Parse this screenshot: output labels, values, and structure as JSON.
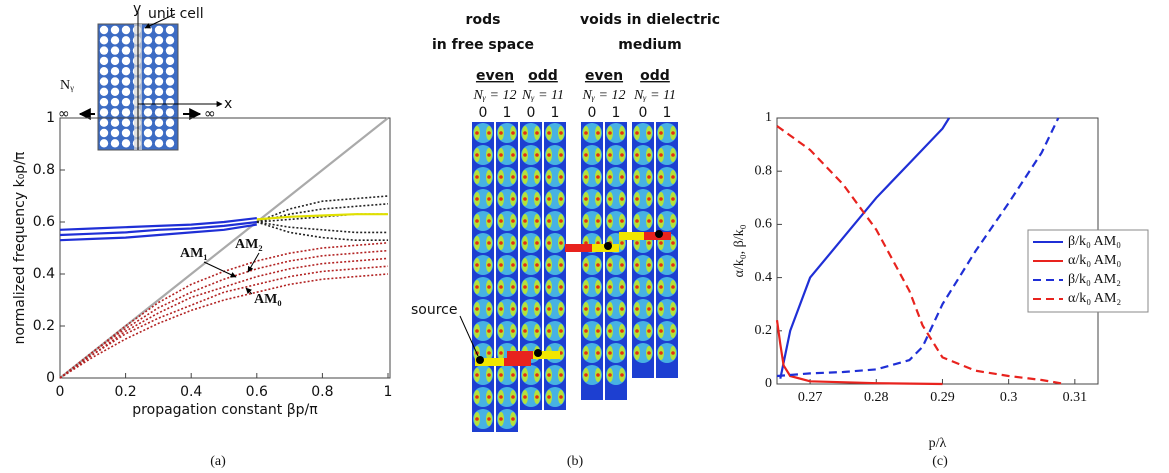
{
  "chart_data": [
    {
      "type": "line",
      "xlabel": "propagation constant βp/π",
      "ylabel": "normalized frequency k₀p/π",
      "xlim": [
        0,
        1
      ],
      "ylim": [
        0,
        1
      ],
      "xticks": [
        0,
        0.2,
        0.4,
        0.6,
        0.8,
        1
      ],
      "yticks": [
        0,
        0.2,
        0.4,
        0.6,
        0.8,
        1
      ],
      "x": [
        0,
        0.1,
        0.2,
        0.3,
        0.4,
        0.5,
        0.6,
        0.7,
        0.8,
        0.9,
        1
      ],
      "series": [
        {
          "color": "#aaaaaa",
          "style": "solid",
          "values": [
            0,
            0.1,
            0.2,
            0.3,
            0.4,
            0.5,
            0.6,
            0.7,
            0.8,
            0.9,
            1
          ]
        },
        {
          "color": "#b22222",
          "style": "dotted",
          "values": [
            0,
            0.1,
            0.2,
            0.29,
            0.36,
            0.41,
            0.45,
            0.48,
            0.5,
            0.51,
            0.52
          ]
        },
        {
          "color": "#b22222",
          "style": "dotted",
          "values": [
            0,
            0.1,
            0.19,
            0.27,
            0.33,
            0.38,
            0.42,
            0.45,
            0.47,
            0.48,
            0.49
          ]
        },
        {
          "color": "#b22222",
          "style": "dotted",
          "values": [
            0,
            0.09,
            0.18,
            0.25,
            0.31,
            0.35,
            0.39,
            0.42,
            0.44,
            0.45,
            0.46
          ]
        },
        {
          "color": "#b22222",
          "style": "dotted",
          "values": [
            0,
            0.09,
            0.17,
            0.23,
            0.28,
            0.33,
            0.36,
            0.39,
            0.41,
            0.42,
            0.43
          ]
        },
        {
          "color": "#b22222",
          "style": "dotted",
          "values": [
            0,
            0.08,
            0.15,
            0.21,
            0.26,
            0.3,
            0.33,
            0.36,
            0.38,
            0.39,
            0.4
          ]
        },
        {
          "color": "#222222",
          "style": "dotted",
          "values": [
            null,
            null,
            null,
            null,
            null,
            null,
            0.6,
            0.65,
            0.68,
            0.69,
            0.7
          ]
        },
        {
          "color": "#222222",
          "style": "dotted",
          "values": [
            null,
            null,
            null,
            null,
            null,
            null,
            0.6,
            0.63,
            0.65,
            0.66,
            0.67
          ]
        },
        {
          "color": "#222222",
          "style": "dotted",
          "values": [
            null,
            null,
            null,
            null,
            null,
            null,
            0.6,
            0.61,
            0.62,
            0.63,
            0.63
          ]
        },
        {
          "color": "#222222",
          "style": "dotted",
          "values": [
            null,
            null,
            null,
            null,
            null,
            null,
            0.6,
            0.58,
            0.57,
            0.56,
            0.56
          ]
        },
        {
          "color": "#222222",
          "style": "dotted",
          "values": [
            null,
            null,
            null,
            null,
            null,
            null,
            0.6,
            0.56,
            0.54,
            0.53,
            0.53
          ]
        },
        {
          "color": "#e0e000",
          "style": "solid",
          "values": [
            null,
            null,
            null,
            null,
            null,
            null,
            0.61,
            0.62,
            0.625,
            0.63,
            0.63
          ]
        },
        {
          "name": "AM₁",
          "color": "#1f2fd6",
          "style": "solid",
          "values": [
            0.57,
            0.575,
            0.58,
            0.585,
            0.59,
            0.6,
            0.615,
            null,
            null,
            null,
            null
          ]
        },
        {
          "name": "AM₂",
          "color": "#1f2fd6",
          "style": "solid",
          "values": [
            0.55,
            0.555,
            0.56,
            0.57,
            0.575,
            0.585,
            0.6,
            null,
            null,
            null,
            null
          ]
        },
        {
          "name": "AM₀",
          "color": "#1f2fd6",
          "style": "solid",
          "values": [
            0.53,
            0.535,
            0.54,
            0.55,
            0.56,
            0.57,
            0.59,
            null,
            null,
            null,
            null
          ]
        }
      ]
    },
    {
      "type": "line",
      "xlabel": "p/λ",
      "ylabel": "α/k₀, β/k₀",
      "legend": "right",
      "xlim": [
        0.265,
        0.3135
      ],
      "ylim": [
        0,
        1
      ],
      "xticks": [
        0.27,
        0.28,
        0.29,
        0.3,
        0.31
      ],
      "yticks": [
        0,
        0.2,
        0.4,
        0.6,
        0.8,
        1
      ],
      "series": [
        {
          "name": "β/k₀ AM₀",
          "color": "#1f2fd6",
          "style": "solid",
          "x": [
            0.2655,
            0.267,
            0.27,
            0.275,
            0.28,
            0.285,
            0.29,
            0.291
          ],
          "values": [
            0.02,
            0.2,
            0.4,
            0.55,
            0.7,
            0.83,
            0.96,
            1
          ]
        },
        {
          "name": "α/k₀ AM₀",
          "color": "#e8231e",
          "style": "solid",
          "x": [
            0.265,
            0.2655,
            0.266,
            0.267,
            0.27,
            0.28,
            0.29
          ],
          "values": [
            0.24,
            0.15,
            0.07,
            0.03,
            0.01,
            0.003,
            0
          ]
        },
        {
          "name": "β/k₀ AM₂",
          "color": "#1f2fd6",
          "style": "dashed",
          "x": [
            0.265,
            0.27,
            0.275,
            0.28,
            0.285,
            0.287,
            0.29,
            0.295,
            0.3,
            0.305,
            0.3075
          ],
          "values": [
            0.03,
            0.04,
            0.045,
            0.055,
            0.09,
            0.14,
            0.3,
            0.5,
            0.68,
            0.87,
            1
          ]
        },
        {
          "name": "α/k₀ AM₂",
          "color": "#e8231e",
          "style": "dashed",
          "x": [
            0.265,
            0.27,
            0.275,
            0.28,
            0.285,
            0.287,
            0.29,
            0.295,
            0.3,
            0.305,
            0.3085
          ],
          "values": [
            0.97,
            0.88,
            0.75,
            0.58,
            0.35,
            0.22,
            0.1,
            0.05,
            0.03,
            0.015,
            0
          ]
        }
      ]
    }
  ],
  "inset": {
    "y_axis": "y",
    "unit_cell": "unit cell",
    "x_axis": "x",
    "count": "Nᵧ",
    "left_inf": "∞",
    "right_inf": "∞"
  },
  "panel_b": {
    "groups": [
      {
        "title": [
          "rods",
          "in free space"
        ],
        "columns": [
          {
            "parity": "even",
            "count": "Nᵧ = 12",
            "indices": [
              "0",
              "1"
            ]
          },
          {
            "parity": "odd",
            "count": "Nᵧ = 11",
            "indices": [
              "0",
              "1"
            ]
          }
        ]
      },
      {
        "title": [
          "voids in dielectric",
          "medium"
        ],
        "columns": [
          {
            "parity": "even",
            "count": "Nᵧ = 12",
            "indices": [
              "0",
              "1"
            ]
          },
          {
            "parity": "odd",
            "count": "Nᵧ = 11",
            "indices": [
              "0",
              "1"
            ]
          }
        ]
      }
    ],
    "source": "source"
  },
  "captions": [
    "(a)",
    "(b)",
    "(c)"
  ]
}
